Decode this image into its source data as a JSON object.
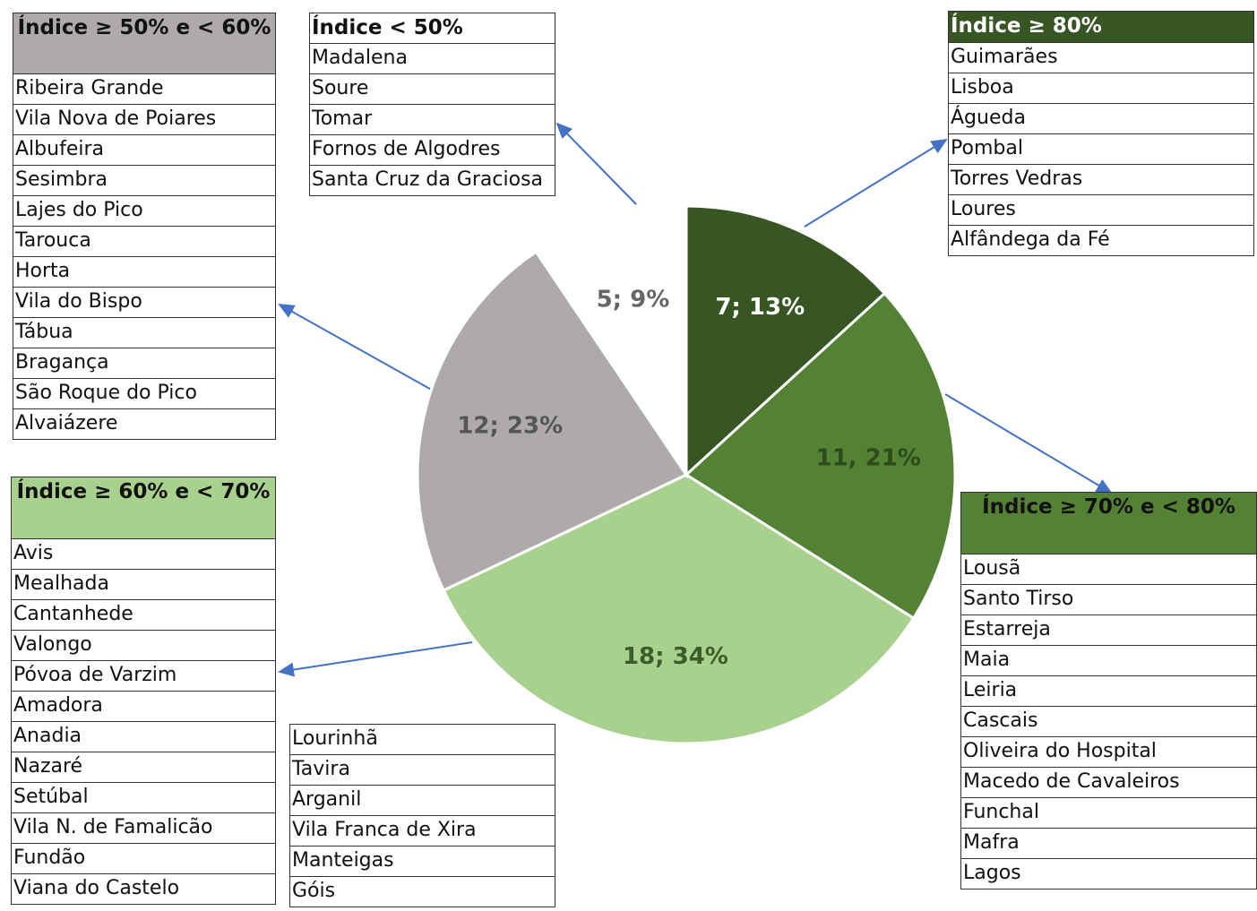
{
  "chart_data": {
    "type": "pie",
    "categories": [
      "Índice ≥ 80%",
      "Índice ≥ 70% e < 80%",
      "Índice ≥ 60% e < 70%",
      "Índice ≥ 50% e < 60%",
      "Índice < 50%"
    ],
    "values": [
      7,
      11,
      18,
      12,
      5
    ],
    "value_labels": [
      "7; 13%",
      "11, 21%",
      "18; 34%",
      "12; 23%",
      "5; 9%"
    ],
    "colors": [
      "#375623",
      "#548235",
      "#a9d18e",
      "#aeaaaa",
      "#ffffff"
    ],
    "municipalities": [
      [
        "Guimarães",
        "Lisboa",
        "Águeda",
        "Pombal",
        "Torres Vedras",
        "Loures",
        "Alfândega da Fé"
      ],
      [
        "Lousã",
        "Santo Tirso",
        "Estarreja",
        "Maia",
        "Leiria",
        "Cascais",
        "Oliveira do Hospital",
        "Macedo de Cavaleiros",
        "Funchal",
        "Mafra",
        "Lagos"
      ],
      [
        "Avis",
        "Mealhada",
        "Cantanhede",
        "Valongo",
        "Póvoa de Varzim",
        "Amadora",
        "Anadia",
        "Nazaré",
        "Setúbal",
        "Vila N. de Famalicão",
        "Fundão",
        "Viana do Castelo",
        "Lourinhã",
        "Tavira",
        "Arganil",
        "Vila Franca de Xira",
        "Manteigas",
        "Góis"
      ],
      [
        "Ribeira Grande",
        "Vila Nova de Poiares",
        "Albufeira",
        "Sesimbra",
        "Lajes do Pico",
        "Tarouca",
        "Horta",
        "Vila do Bispo",
        "Tábua",
        "Bragança",
        "São Roque do Pico",
        "Alvaiázere"
      ],
      [
        "Madalena",
        "Soure",
        "Tomar",
        "Fornos de Algodres",
        "Santa Cruz da Graciosa"
      ]
    ]
  }
}
